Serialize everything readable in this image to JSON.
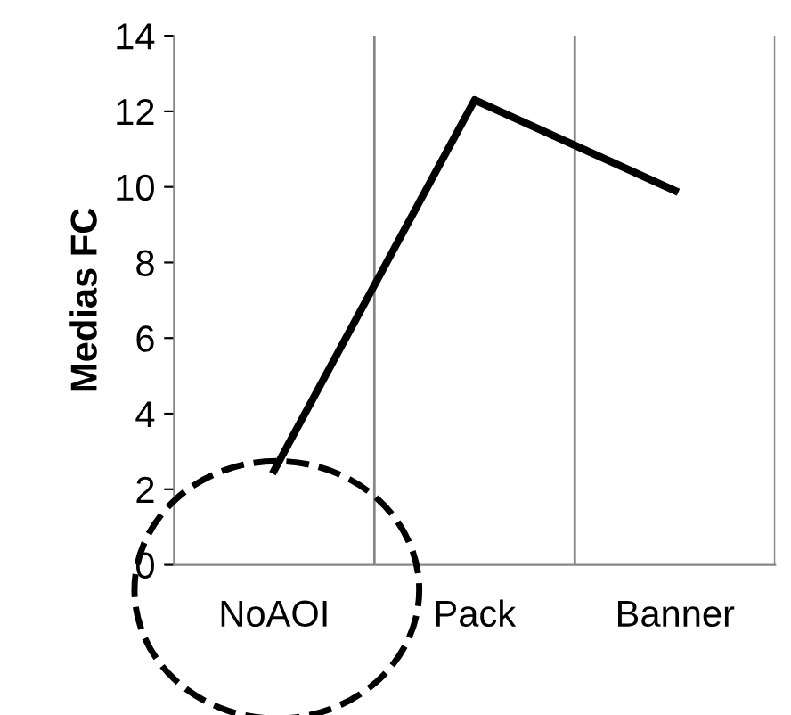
{
  "chart_data": {
    "type": "line",
    "ylabel": "Medias FC",
    "categories": [
      "NoAOI",
      "Pack",
      "Banner"
    ],
    "series": [
      {
        "color": "#000000",
        "values": [
          2.5,
          12.3,
          9.9
        ]
      }
    ],
    "ylim": [
      0,
      14
    ],
    "yticks": [
      0,
      2,
      4,
      6,
      8,
      10,
      12,
      14
    ],
    "grid": "x",
    "marker": "none",
    "line_style": "solid"
  }
}
